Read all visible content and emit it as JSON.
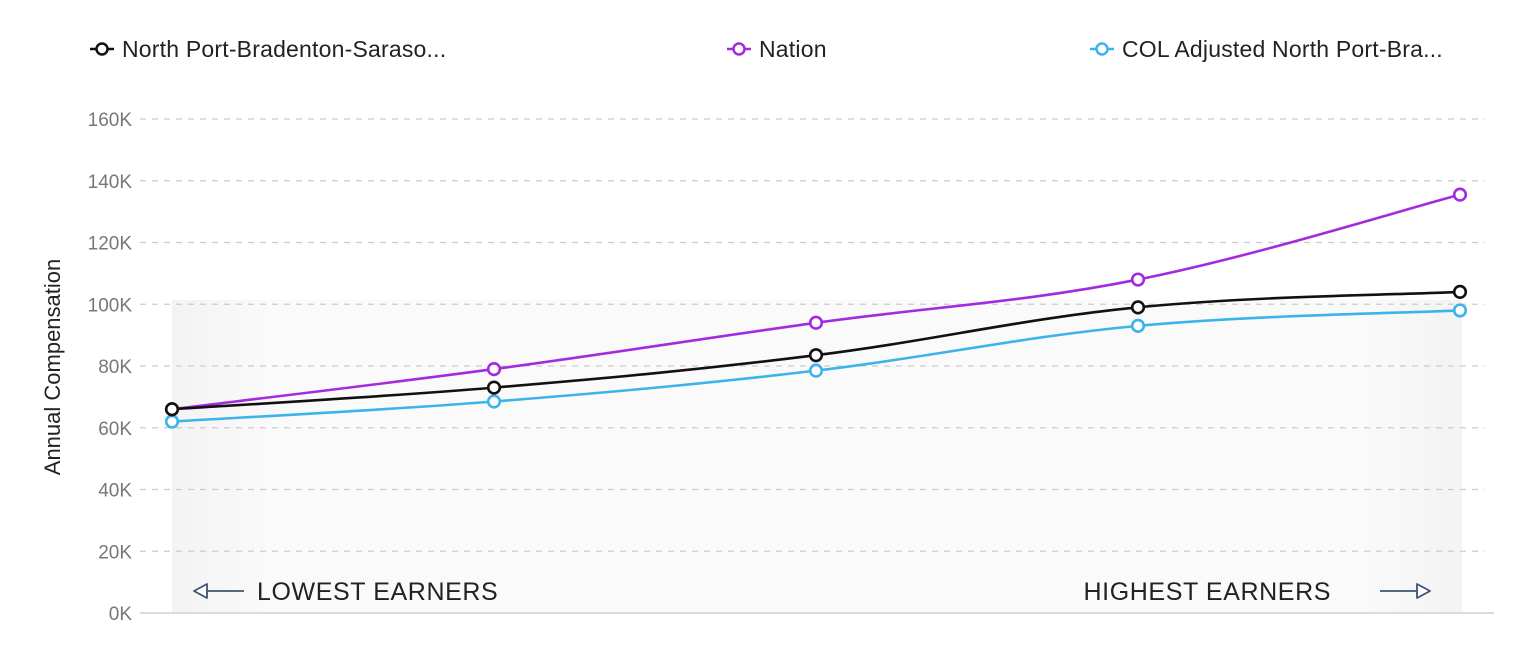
{
  "legend": [
    {
      "label": "North Port-Bradenton-Saraso...",
      "color": "#111111"
    },
    {
      "label": "Nation",
      "color": "#a42ae0"
    },
    {
      "label": "COL Adjusted North Port-Bra...",
      "color": "#3cb4ea"
    }
  ],
  "annotations": {
    "left": "LOWEST EARNERS",
    "right": "HIGHEST EARNERS",
    "left_icon": "arrow-left-icon",
    "right_icon": "arrow-right-icon"
  },
  "chart_data": {
    "type": "line",
    "ylabel": "Annual Compensation",
    "xlabel": "",
    "ylim": [
      0,
      160000
    ],
    "yticks": [
      0,
      20000,
      40000,
      60000,
      80000,
      100000,
      120000,
      140000,
      160000
    ],
    "ytick_labels": [
      "0K",
      "20K",
      "40K",
      "60K",
      "80K",
      "100K",
      "120K",
      "140K",
      "160K"
    ],
    "grid": true,
    "legend_position": "top",
    "series": [
      {
        "name": "North Port-Bradenton-Saraso...",
        "color": "#111111",
        "values": [
          66000,
          73000,
          83500,
          99000,
          104000
        ]
      },
      {
        "name": "Nation",
        "color": "#a42ae0",
        "values": [
          66000,
          79000,
          94000,
          108000,
          135500
        ]
      },
      {
        "name": "COL Adjusted North Port-Bra...",
        "color": "#3cb4ea",
        "values": [
          62000,
          68500,
          78500,
          93000,
          98000
        ]
      }
    ]
  }
}
